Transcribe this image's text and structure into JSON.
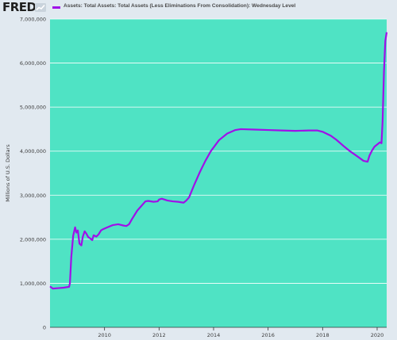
{
  "brand": {
    "logo_text": "FRED"
  },
  "colors": {
    "plot_background": "#4fe3c4",
    "series": "#a010e8",
    "page_background": "#e1e9f0"
  },
  "chart_data": {
    "type": "line",
    "title": "",
    "xlabel": "",
    "ylabel": "Millions of U.S. Dollars",
    "xlim": [
      2008.0,
      2020.35
    ],
    "ylim": [
      0,
      7000000
    ],
    "x_ticks": [
      2010,
      2012,
      2014,
      2016,
      2018,
      2020
    ],
    "x_tick_labels": [
      "2010",
      "2012",
      "2014",
      "2016",
      "2018",
      "2020"
    ],
    "y_ticks": [
      0,
      1000000,
      2000000,
      3000000,
      4000000,
      5000000,
      6000000,
      7000000
    ],
    "y_tick_labels": [
      "0",
      "1,000,000",
      "2,000,000",
      "3,000,000",
      "4,000,000",
      "5,000,000",
      "6,000,000",
      "7,000,000"
    ],
    "grid": "horizontal",
    "legend_position": "top",
    "series": [
      {
        "name": "Assets: Total Assets: Total Assets (Less Eliminations From Consolidation): Wednesday Level",
        "x": [
          2008.0,
          2008.1,
          2008.3,
          2008.5,
          2008.7,
          2008.73,
          2008.78,
          2008.85,
          2008.92,
          2008.97,
          2009.02,
          2009.08,
          2009.15,
          2009.2,
          2009.27,
          2009.33,
          2009.4,
          2009.47,
          2009.55,
          2009.6,
          2009.7,
          2009.78,
          2009.87,
          2009.95,
          2010.1,
          2010.3,
          2010.5,
          2010.7,
          2010.8,
          2010.9,
          2011.0,
          2011.2,
          2011.5,
          2011.6,
          2011.8,
          2011.95,
          2012.0,
          2012.1,
          2012.3,
          2012.5,
          2012.7,
          2012.9,
          2013.0,
          2013.1,
          2013.3,
          2013.5,
          2013.7,
          2013.9,
          2014.2,
          2014.5,
          2014.8,
          2015.0,
          2015.5,
          2016.0,
          2016.5,
          2017.0,
          2017.5,
          2017.8,
          2018.0,
          2018.3,
          2018.5,
          2018.8,
          2019.0,
          2019.3,
          2019.5,
          2019.65,
          2019.72,
          2019.8,
          2019.9,
          2020.0,
          2020.1,
          2020.16,
          2020.2,
          2020.25,
          2020.3,
          2020.35
        ],
        "y": [
          930000,
          880000,
          890000,
          900000,
          920000,
          1000000,
          1600000,
          2080000,
          2270000,
          2150000,
          2200000,
          1900000,
          1860000,
          2050000,
          2180000,
          2130000,
          2050000,
          2020000,
          1980000,
          2090000,
          2060000,
          2110000,
          2200000,
          2230000,
          2270000,
          2320000,
          2340000,
          2310000,
          2300000,
          2340000,
          2450000,
          2650000,
          2860000,
          2870000,
          2850000,
          2860000,
          2900000,
          2920000,
          2880000,
          2860000,
          2850000,
          2830000,
          2880000,
          2950000,
          3250000,
          3530000,
          3780000,
          4000000,
          4250000,
          4400000,
          4480000,
          4500000,
          4490000,
          4480000,
          4470000,
          4460000,
          4470000,
          4470000,
          4440000,
          4350000,
          4260000,
          4100000,
          4000000,
          3870000,
          3780000,
          3760000,
          3900000,
          4000000,
          4100000,
          4150000,
          4200000,
          4180000,
          4670000,
          5800000,
          6500000,
          6700000
        ]
      }
    ]
  }
}
